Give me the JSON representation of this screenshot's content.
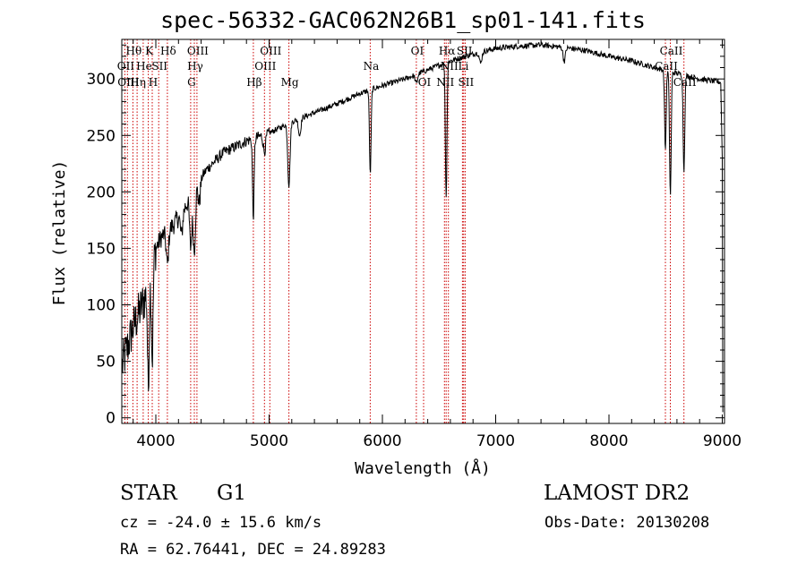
{
  "title": "spec-56332-GAC062N26B1_sp01-141.fits",
  "footer": {
    "object_class": "STAR",
    "object_subclass": "G1",
    "survey": "LAMOST DR2",
    "redshift_line": "cz = -24.0 ± 15.6 km/s",
    "obs_date_line": "Obs-Date: 20130208",
    "radec_line": "RA =  62.76441, DEC =  24.89283"
  },
  "colors": {
    "line_markers": "#cc0000",
    "spectrum": "#000000",
    "axes": "#000000"
  },
  "chart_data": {
    "type": "line",
    "title": "spec-56332-GAC062N26B1_sp01-141.fits",
    "xlabel": "Wavelength (Å)",
    "ylabel": "Flux (relative)",
    "xlim": [
      3700,
      9020
    ],
    "ylim": [
      -5,
      335
    ],
    "xticks": [
      4000,
      5000,
      6000,
      7000,
      8000,
      9000
    ],
    "yticks": [
      0,
      50,
      100,
      150,
      200,
      250,
      300
    ],
    "grid": false,
    "continuum": [
      [
        3700,
        45
      ],
      [
        3800,
        80
      ],
      [
        3900,
        105
      ],
      [
        3950,
        120
      ],
      [
        4000,
        150
      ],
      [
        4050,
        160
      ],
      [
        4150,
        170
      ],
      [
        4250,
        185
      ],
      [
        4350,
        205
      ],
      [
        4450,
        220
      ],
      [
        4600,
        235
      ],
      [
        4800,
        245
      ],
      [
        5000,
        252
      ],
      [
        5200,
        262
      ],
      [
        5400,
        270
      ],
      [
        5600,
        278
      ],
      [
        5800,
        287
      ],
      [
        6000,
        294
      ],
      [
        6200,
        300
      ],
      [
        6400,
        308
      ],
      [
        6600,
        316
      ],
      [
        6800,
        322
      ],
      [
        7000,
        327
      ],
      [
        7200,
        329
      ],
      [
        7400,
        330
      ],
      [
        7600,
        328
      ],
      [
        7800,
        325
      ],
      [
        8000,
        320
      ],
      [
        8200,
        316
      ],
      [
        8400,
        310
      ],
      [
        8600,
        305
      ],
      [
        8800,
        300
      ],
      [
        8990,
        297
      ]
    ],
    "absorption_features": [
      [
        3934,
        90
      ],
      [
        3969,
        80
      ],
      [
        4102,
        30
      ],
      [
        4227,
        20
      ],
      [
        4308,
        45
      ],
      [
        4340,
        55
      ],
      [
        4383,
        20
      ],
      [
        4861,
        70
      ],
      [
        4959,
        15
      ],
      [
        5175,
        55
      ],
      [
        5270,
        15
      ],
      [
        5893,
        75
      ],
      [
        6300,
        8
      ],
      [
        6563,
        120
      ],
      [
        6867,
        10
      ],
      [
        7605,
        12
      ],
      [
        8498,
        70
      ],
      [
        8542,
        110
      ],
      [
        8662,
        85
      ]
    ],
    "line_markers": {
      "wavelengths": [
        3727,
        3750,
        3798,
        3835,
        3889,
        3934,
        3969,
        4026,
        4102,
        4340,
        4308,
        4363,
        4861,
        4959,
        5007,
        5175,
        5893,
        6300,
        6364,
        6548,
        6563,
        6583,
        6707,
        6717,
        6731,
        8498,
        8542,
        8662
      ],
      "labels": [
        {
          "text": "Hθ",
          "w": 3798,
          "row": 0
        },
        {
          "text": "K",
          "w": 3934,
          "row": 0
        },
        {
          "text": "Hδ",
          "w": 4102,
          "row": 0
        },
        {
          "text": "OIII",
          "w": 4363,
          "row": 0
        },
        {
          "text": "OIII",
          "w": 5007,
          "row": 0
        },
        {
          "text": "OI",
          "w": 6300,
          "row": 0
        },
        {
          "text": "Hα",
          "w": 6563,
          "row": 0
        },
        {
          "text": "SII",
          "w": 6717,
          "row": 0
        },
        {
          "text": "CaII",
          "w": 8542,
          "row": 0
        },
        {
          "text": "OII",
          "w": 3727,
          "row": 1
        },
        {
          "text": "He",
          "w": 3889,
          "row": 1
        },
        {
          "text": "SII",
          "w": 4026,
          "row": 1
        },
        {
          "text": "Hγ",
          "w": 4340,
          "row": 1
        },
        {
          "text": "OIII",
          "w": 4959,
          "row": 1
        },
        {
          "text": "Na",
          "w": 5893,
          "row": 1
        },
        {
          "text": "NII",
          "w": 6583,
          "row": 1
        },
        {
          "text": "Li",
          "w": 6707,
          "row": 1
        },
        {
          "text": "CaII",
          "w": 8498,
          "row": 1
        },
        {
          "text": "OIII",
          "w": 3750,
          "row": 2
        },
        {
          "text": "Hη",
          "w": 3835,
          "row": 2
        },
        {
          "text": "H",
          "w": 3969,
          "row": 2
        },
        {
          "text": "G",
          "w": 4308,
          "row": 2
        },
        {
          "text": "Hβ",
          "w": 4861,
          "row": 2
        },
        {
          "text": "Mg",
          "w": 5175,
          "row": 2
        },
        {
          "text": "OI",
          "w": 6364,
          "row": 2
        },
        {
          "text": "NII",
          "w": 6548,
          "row": 2
        },
        {
          "text": "SII",
          "w": 6731,
          "row": 2
        },
        {
          "text": "CaII",
          "w": 8662,
          "row": 2
        }
      ]
    }
  }
}
